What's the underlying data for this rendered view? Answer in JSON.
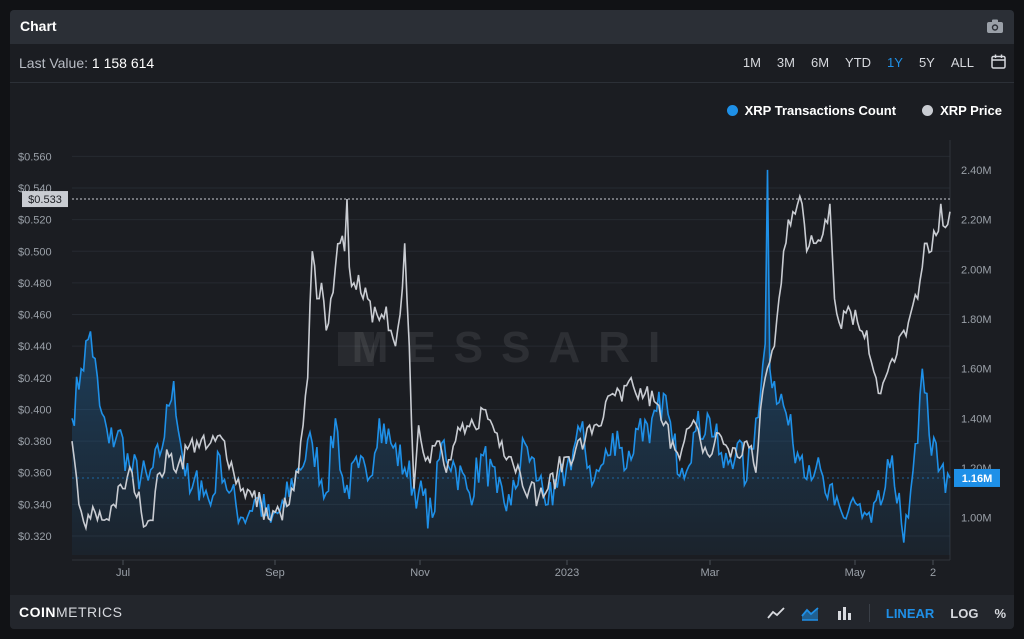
{
  "header": {
    "title": "Chart",
    "camera_icon": "camera-icon"
  },
  "toolbar": {
    "last_value_label": "Last Value:",
    "last_value": "1 158 614",
    "ranges": [
      "1M",
      "3M",
      "6M",
      "YTD",
      "1Y",
      "5Y",
      "ALL"
    ],
    "active_range": "1Y",
    "calendar_icon": "calendar-icon"
  },
  "footer": {
    "logo_bold": "COIN",
    "logo_rest": "METRICS",
    "scale_options": [
      "LINEAR",
      "LOG",
      "%"
    ],
    "active_scale": "LINEAR",
    "chart_type_icons": [
      "line-chart-icon",
      "area-chart-icon",
      "bar-chart-icon"
    ]
  },
  "watermark": "MESSARI",
  "colors": {
    "transactions": "#1e90e8",
    "price": "#c9ccd2",
    "accent": "#1f8fe6"
  },
  "chart_data": {
    "type": "line",
    "title": "",
    "x_ticks": [
      "Jul",
      "Sep",
      "Nov",
      "2023",
      "Mar",
      "May",
      "2"
    ],
    "y_left": {
      "ticks": [
        "$0.320",
        "$0.340",
        "$0.360",
        "$0.380",
        "$0.400",
        "$0.420",
        "$0.440",
        "$0.460",
        "$0.480",
        "$0.500",
        "$0.520",
        "$0.540",
        "$0.560"
      ],
      "range": [
        0.308,
        0.564
      ]
    },
    "y_right": {
      "ticks": [
        "1.00M",
        "1.20M",
        "1.40M",
        "1.60M",
        "1.80M",
        "2.00M",
        "2.20M",
        "2.40M"
      ],
      "range": [
        0.85,
        2.48
      ]
    },
    "crosshair": {
      "price_label": "$0.533",
      "value": 0.533
    },
    "last_value_marker": {
      "label": "1.16M",
      "value": 1.16
    },
    "grid": true,
    "legend_position": "top-right",
    "series": [
      {
        "name": "XRP Transactions Count",
        "axis": "right",
        "unit": "M",
        "anchors": [
          [
            0,
            1.4
          ],
          [
            4,
            1.6
          ],
          [
            8,
            1.75
          ],
          [
            12,
            1.45
          ],
          [
            16,
            1.3
          ],
          [
            20,
            1.35
          ],
          [
            25,
            1.2
          ],
          [
            33,
            1.15
          ],
          [
            38,
            1.25
          ],
          [
            42,
            1.45
          ],
          [
            44,
            1.55
          ],
          [
            47,
            1.3
          ],
          [
            51,
            1.1
          ],
          [
            56,
            1.15
          ],
          [
            60,
            1.05
          ],
          [
            64,
            1.25
          ],
          [
            68,
            1.1
          ],
          [
            74,
            1.0
          ],
          [
            80,
            1.08
          ],
          [
            86,
            0.98
          ],
          [
            92,
            1.05
          ],
          [
            98,
            1.2
          ],
          [
            104,
            1.3
          ],
          [
            110,
            1.1
          ],
          [
            114,
            1.4
          ],
          [
            118,
            1.1
          ],
          [
            124,
            1.2
          ],
          [
            128,
            1.15
          ],
          [
            133,
            1.4
          ],
          [
            138,
            1.3
          ],
          [
            144,
            1.2
          ],
          [
            150,
            1.1
          ],
          [
            156,
            1.0
          ],
          [
            160,
            1.3
          ],
          [
            166,
            1.2
          ],
          [
            172,
            1.1
          ],
          [
            178,
            1.25
          ],
          [
            184,
            1.1
          ],
          [
            190,
            1.05
          ],
          [
            196,
            1.3
          ],
          [
            202,
            1.15
          ],
          [
            208,
            1.05
          ],
          [
            214,
            1.2
          ],
          [
            220,
            1.35
          ],
          [
            226,
            1.15
          ],
          [
            232,
            1.25
          ],
          [
            236,
            1.35
          ],
          [
            240,
            1.2
          ],
          [
            246,
            1.4
          ],
          [
            250,
            1.3
          ],
          [
            256,
            1.5
          ],
          [
            260,
            1.3
          ],
          [
            264,
            1.2
          ],
          [
            270,
            1.35
          ],
          [
            276,
            1.4
          ],
          [
            282,
            1.2
          ],
          [
            288,
            1.3
          ],
          [
            292,
            1.15
          ],
          [
            296,
            1.4
          ],
          [
            298,
            1.5
          ],
          [
            300,
            1.7
          ],
          [
            301,
            2.4
          ],
          [
            302,
            1.6
          ],
          [
            304,
            1.55
          ],
          [
            308,
            1.45
          ],
          [
            312,
            1.3
          ],
          [
            316,
            1.25
          ],
          [
            322,
            1.2
          ],
          [
            326,
            1.1
          ],
          [
            330,
            1.05
          ],
          [
            334,
            1.0
          ],
          [
            338,
            1.08
          ],
          [
            342,
            1.0
          ],
          [
            346,
            0.98
          ],
          [
            350,
            1.05
          ],
          [
            354,
            1.2
          ],
          [
            358,
            1.1
          ],
          [
            360,
            0.9
          ],
          [
            362,
            1.0
          ],
          [
            366,
            1.3
          ],
          [
            368,
            1.6
          ],
          [
            370,
            1.5
          ],
          [
            372,
            1.25
          ],
          [
            374,
            1.3
          ],
          [
            376,
            1.2
          ],
          [
            378,
            1.1
          ],
          [
            380,
            1.16
          ]
        ]
      },
      {
        "name": "XRP Price",
        "axis": "left",
        "unit": "$",
        "anchors": [
          [
            0,
            0.38
          ],
          [
            3,
            0.34
          ],
          [
            6,
            0.325
          ],
          [
            10,
            0.335
          ],
          [
            14,
            0.33
          ],
          [
            18,
            0.34
          ],
          [
            22,
            0.35
          ],
          [
            26,
            0.36
          ],
          [
            30,
            0.335
          ],
          [
            34,
            0.33
          ],
          [
            38,
            0.36
          ],
          [
            42,
            0.37
          ],
          [
            46,
            0.365
          ],
          [
            50,
            0.375
          ],
          [
            54,
            0.38
          ],
          [
            58,
            0.375
          ],
          [
            62,
            0.38
          ],
          [
            66,
            0.38
          ],
          [
            70,
            0.36
          ],
          [
            74,
            0.35
          ],
          [
            78,
            0.345
          ],
          [
            82,
            0.34
          ],
          [
            86,
            0.33
          ],
          [
            90,
            0.335
          ],
          [
            94,
            0.34
          ],
          [
            98,
            0.36
          ],
          [
            100,
            0.39
          ],
          [
            102,
            0.42
          ],
          [
            104,
            0.5
          ],
          [
            106,
            0.47
          ],
          [
            108,
            0.48
          ],
          [
            110,
            0.45
          ],
          [
            112,
            0.47
          ],
          [
            114,
            0.49
          ],
          [
            116,
            0.505
          ],
          [
            118,
            0.5
          ],
          [
            119,
            0.533
          ],
          [
            120,
            0.49
          ],
          [
            122,
            0.48
          ],
          [
            124,
            0.485
          ],
          [
            126,
            0.47
          ],
          [
            128,
            0.47
          ],
          [
            130,
            0.455
          ],
          [
            132,
            0.46
          ],
          [
            134,
            0.46
          ],
          [
            136,
            0.465
          ],
          [
            138,
            0.45
          ],
          [
            140,
            0.44
          ],
          [
            142,
            0.46
          ],
          [
            144,
            0.505
          ],
          [
            146,
            0.44
          ],
          [
            147,
            0.39
          ],
          [
            148,
            0.35
          ],
          [
            150,
            0.39
          ],
          [
            154,
            0.37
          ],
          [
            158,
            0.38
          ],
          [
            162,
            0.36
          ],
          [
            166,
            0.38
          ],
          [
            170,
            0.385
          ],
          [
            174,
            0.39
          ],
          [
            178,
            0.4
          ],
          [
            182,
            0.39
          ],
          [
            186,
            0.38
          ],
          [
            190,
            0.37
          ],
          [
            194,
            0.36
          ],
          [
            198,
            0.35
          ],
          [
            202,
            0.345
          ],
          [
            206,
            0.35
          ],
          [
            210,
            0.36
          ],
          [
            214,
            0.37
          ],
          [
            218,
            0.375
          ],
          [
            222,
            0.38
          ],
          [
            226,
            0.39
          ],
          [
            230,
            0.395
          ],
          [
            234,
            0.41
          ],
          [
            238,
            0.405
          ],
          [
            240,
            0.415
          ],
          [
            244,
            0.41
          ],
          [
            248,
            0.41
          ],
          [
            252,
            0.405
          ],
          [
            256,
            0.39
          ],
          [
            260,
            0.38
          ],
          [
            264,
            0.375
          ],
          [
            268,
            0.39
          ],
          [
            272,
            0.38
          ],
          [
            276,
            0.37
          ],
          [
            280,
            0.385
          ],
          [
            284,
            0.375
          ],
          [
            288,
            0.37
          ],
          [
            292,
            0.38
          ],
          [
            296,
            0.36
          ],
          [
            298,
            0.4
          ],
          [
            300,
            0.42
          ],
          [
            302,
            0.43
          ],
          [
            304,
            0.44
          ],
          [
            306,
            0.47
          ],
          [
            308,
            0.5
          ],
          [
            310,
            0.52
          ],
          [
            312,
            0.525
          ],
          [
            316,
            0.53
          ],
          [
            318,
            0.5
          ],
          [
            320,
            0.51
          ],
          [
            322,
            0.505
          ],
          [
            326,
            0.52
          ],
          [
            328,
            0.53
          ],
          [
            330,
            0.47
          ],
          [
            332,
            0.455
          ],
          [
            336,
            0.465
          ],
          [
            340,
            0.455
          ],
          [
            344,
            0.45
          ],
          [
            346,
            0.43
          ],
          [
            348,
            0.42
          ],
          [
            350,
            0.41
          ],
          [
            352,
            0.42
          ],
          [
            356,
            0.43
          ],
          [
            360,
            0.45
          ],
          [
            362,
            0.455
          ],
          [
            366,
            0.47
          ],
          [
            368,
            0.49
          ],
          [
            370,
            0.505
          ],
          [
            372,
            0.5
          ],
          [
            374,
            0.51
          ],
          [
            376,
            0.53
          ],
          [
            378,
            0.515
          ],
          [
            380,
            0.525
          ]
        ]
      }
    ]
  }
}
